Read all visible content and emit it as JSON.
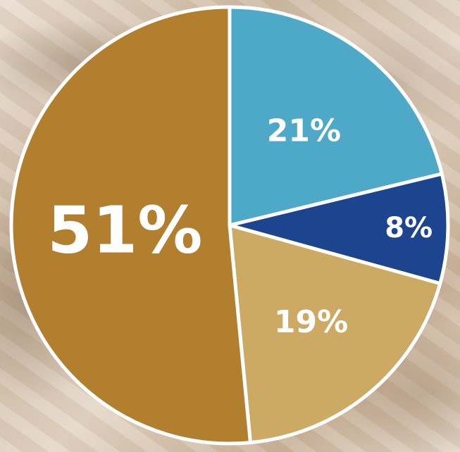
{
  "chart_data": {
    "type": "pie",
    "title": "",
    "slices": [
      {
        "label": "21%",
        "value": 21,
        "color": "#4ea9c9"
      },
      {
        "label": "8%",
        "value": 8,
        "color": "#1d448e"
      },
      {
        "label": "19%",
        "value": 19,
        "color": "#ccaa63"
      },
      {
        "label": "51%",
        "value": 51,
        "color": "#b27f2e"
      }
    ],
    "start_angle_deg": 0,
    "direction": "clockwise",
    "separator_color": "#ffffff"
  }
}
